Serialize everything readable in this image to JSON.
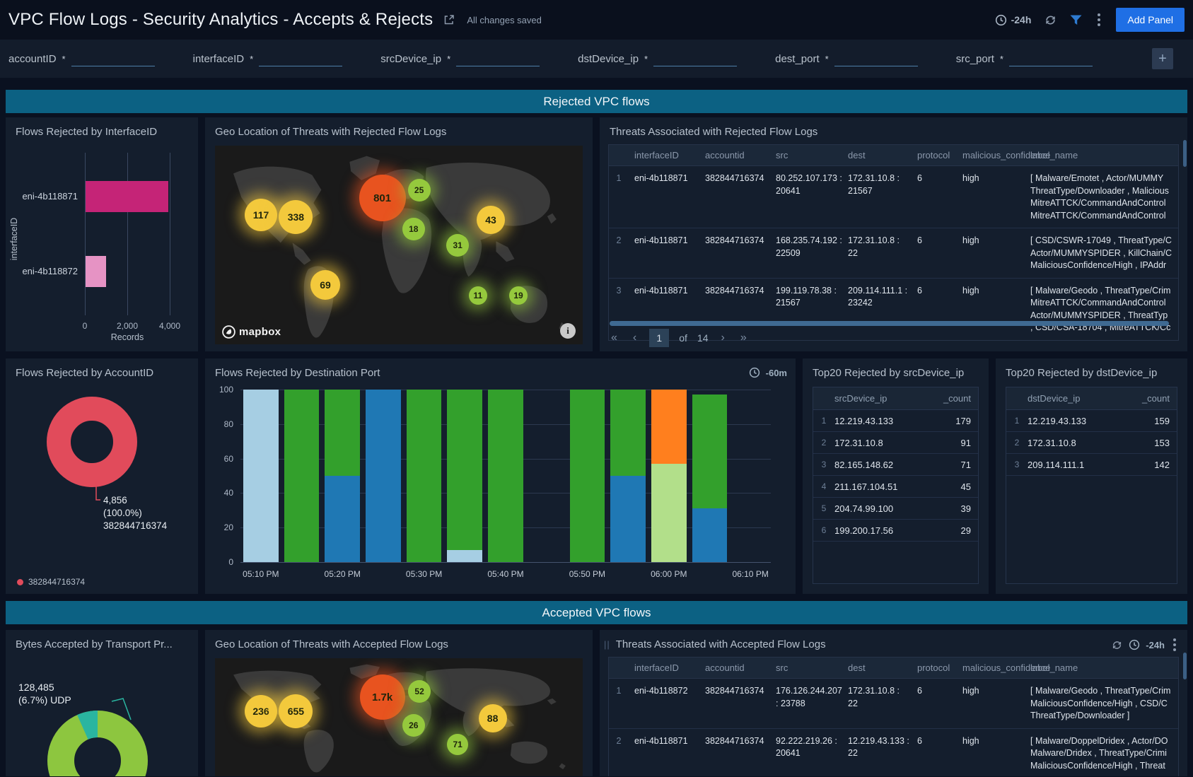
{
  "header": {
    "title": "VPC Flow Logs - Security Analytics - Accepts & Rejects",
    "saved_status": "All changes saved",
    "time_range": "-24h",
    "add_panel_label": "Add Panel"
  },
  "filters": [
    {
      "label": "accountID",
      "required": "*",
      "value": ""
    },
    {
      "label": "interfaceID",
      "required": "*",
      "value": ""
    },
    {
      "label": "srcDevice_ip",
      "required": "*",
      "value": ""
    },
    {
      "label": "dstDevice_ip",
      "required": "*",
      "value": ""
    },
    {
      "label": "dest_port",
      "required": "*",
      "value": ""
    },
    {
      "label": "src_port",
      "required": "*",
      "value": ""
    }
  ],
  "sections": {
    "rejected": "Rejected VPC flows",
    "accepted": "Accepted VPC flows"
  },
  "colors": {
    "band": "#0c6183",
    "accent_blue": "#1f6fe5",
    "bar_magenta": "#c52477",
    "bar_pink": "#e693c4",
    "donut_red": "#e14b5b",
    "donut_green": "#8dc63f",
    "donut_teal": "#2ab5a0",
    "stack_lightblue": "#a6cee3",
    "stack_green": "#33a02c",
    "stack_blue": "#1f78b4",
    "stack_lightgreen": "#b2df8a",
    "stack_orange": "#ff7f1e",
    "bubble_yellow": "#f3c93c",
    "bubble_green": "#95c93d",
    "bubble_red": "#e8531f"
  },
  "panels": {
    "interface_bar": {
      "title": "Flows Rejected by InterfaceID"
    },
    "geo_rejected": {
      "title": "Geo Location of Threats with Rejected Flow Logs",
      "attribution": "mapbox",
      "info": "i"
    },
    "threats_rejected": {
      "title": "Threats Associated with Rejected Flow Logs",
      "columns": [
        "interfaceID",
        "accountid",
        "src",
        "dest",
        "protocol",
        "malicious_confidence",
        "label_name"
      ],
      "rows": [
        {
          "num": "1",
          "interfaceID": "eni-4b118871",
          "accountid": "382844716374",
          "src": "80.252.107.173 : 20641",
          "dest": "172.31.10.8 : 21567",
          "protocol": "6",
          "malicious_confidence": "high",
          "label_lines": [
            "[ Malware/Emotet , Actor/MUMMY",
            "ThreatType/Downloader , Malicious",
            "MitreATTCK/CommandAndControl",
            "MitreATTCK/CommandAndControl"
          ]
        },
        {
          "num": "2",
          "interfaceID": "eni-4b118871",
          "accountid": "382844716374",
          "src": "168.235.74.192 : 22509",
          "dest": "172.31.10.8 : 22",
          "protocol": "6",
          "malicious_confidence": "high",
          "label_lines": [
            "[ CSD/CSWR-17049 , ThreatType/C",
            "Actor/MUMMYSPIDER , KillChain/C",
            "MaliciousConfidence/High , IPAddr"
          ]
        },
        {
          "num": "3",
          "interfaceID": "eni-4b118871",
          "accountid": "382844716374",
          "src": "199.119.78.38 : 21567",
          "dest": "209.114.111.1 : 23242",
          "protocol": "6",
          "malicious_confidence": "high",
          "label_lines": [
            "[ Malware/Geodo , ThreatType/Crim",
            "MitreATTCK/CommandAndControl",
            "Actor/MUMMYSPIDER , ThreatTyp",
            ", CSD/CSA-18704 , MitreATTCK/Cc"
          ]
        }
      ],
      "pagination": {
        "first": "«",
        "prev": "‹",
        "current": "1",
        "of_label": "of",
        "total": "14",
        "next": "›",
        "last": "»"
      }
    },
    "account_donut": {
      "title": "Flows Rejected by AccountID",
      "legend_label": "382844716374"
    },
    "dest_port_chart": {
      "title": "Flows Rejected by Destination Port",
      "time_hint": "-60m"
    },
    "top_src": {
      "title": "Top20 Rejected by srcDevice_ip",
      "columns": [
        "srcDevice_ip",
        "_count"
      ],
      "rows": [
        [
          "12.219.43.133",
          "179"
        ],
        [
          "172.31.10.8",
          "91"
        ],
        [
          "82.165.148.62",
          "71"
        ],
        [
          "211.167.104.51",
          "45"
        ],
        [
          "204.74.99.100",
          "39"
        ],
        [
          "199.200.17.56",
          "29"
        ]
      ]
    },
    "top_dst": {
      "title": "Top20 Rejected by dstDevice_ip",
      "columns": [
        "dstDevice_ip",
        "_count"
      ],
      "rows": [
        [
          "12.219.43.133",
          "159"
        ],
        [
          "172.31.10.8",
          "153"
        ],
        [
          "209.114.111.1",
          "142"
        ]
      ]
    },
    "bytes_donut": {
      "title": "Bytes Accepted by Transport Pr..."
    },
    "geo_accepted": {
      "title": "Geo Location of Threats with Accepted Flow Logs"
    },
    "threats_accepted": {
      "title": "Threats Associated with Accepted Flow Logs",
      "time_range": "-24h",
      "columns": [
        "interfaceID",
        "accountid",
        "src",
        "dest",
        "protocol",
        "malicious_confidence",
        "label_name"
      ],
      "rows": [
        {
          "num": "1",
          "interfaceID": "eni-4b118872",
          "accountid": "382844716374",
          "src": "176.126.244.207 : 23788",
          "dest": "172.31.10.8 : 22",
          "protocol": "6",
          "malicious_confidence": "high",
          "label_lines": [
            "[ Malware/Geodo , ThreatType/Crim",
            "MaliciousConfidence/High , CSD/C",
            "ThreatType/Downloader ]"
          ]
        },
        {
          "num": "2",
          "interfaceID": "eni-4b118871",
          "accountid": "382844716374",
          "src": "92.222.219.26 : 20641",
          "dest": "12.219.43.133 : 22",
          "protocol": "6",
          "malicious_confidence": "high",
          "label_lines": [
            "[ Malware/DoppelDridex , Actor/DO",
            "Malware/Dridex , ThreatType/Crimi",
            "MaliciousConfidence/High , Threat"
          ]
        }
      ]
    }
  },
  "chart_data": [
    {
      "id": "flows_rejected_by_interfaceid",
      "type": "bar",
      "orientation": "horizontal",
      "title": "Flows Rejected by InterfaceID",
      "categories": [
        "eni-4b118871",
        "eni-4b118872"
      ],
      "values": [
        3900,
        950
      ],
      "colors": [
        "#c52477",
        "#e693c4"
      ],
      "xlabel": "Records",
      "ylabel": "interfaceID",
      "xticks": [
        "0",
        "2,000",
        "4,000"
      ],
      "xlim": [
        0,
        4000
      ],
      "grid": true
    },
    {
      "id": "flows_rejected_by_accountid",
      "type": "donut",
      "title": "Flows Rejected by AccountID",
      "slices": [
        {
          "label": "382844716374",
          "value": 4856,
          "pct": "100.0%",
          "color": "#e14b5b"
        }
      ],
      "callout_lines": [
        "4,856",
        "(100.0%)",
        "382844716374"
      ],
      "legend": [
        {
          "label": "382844716374",
          "color": "#e14b5b"
        }
      ]
    },
    {
      "id": "flows_rejected_by_destination_port",
      "type": "stacked_bar",
      "title": "Flows Rejected by Destination Port",
      "time_hint": "-60m",
      "ylim": [
        0,
        100
      ],
      "yticks": [
        0,
        20,
        40,
        60,
        80,
        100
      ],
      "x_slots": [
        "05:10 PM",
        "05:15 PM",
        "05:20 PM",
        "05:25 PM",
        "05:30 PM",
        "05:35 PM",
        "05:40 PM",
        "05:45 PM",
        "05:50 PM",
        "05:55 PM",
        "06:00 PM",
        "06:05 PM",
        "06:10 PM"
      ],
      "x_tick_labels": [
        "05:10 PM",
        "05:20 PM",
        "05:30 PM",
        "05:40 PM",
        "05:50 PM",
        "06:00 PM",
        "06:10 PM"
      ],
      "bars": [
        {
          "slot": 0,
          "segments": [
            {
              "color": "#a6cee3",
              "value": 100
            }
          ]
        },
        {
          "slot": 1,
          "segments": [
            {
              "color": "#33a02c",
              "value": 100
            }
          ]
        },
        {
          "slot": 2,
          "segments": [
            {
              "color": "#1f78b4",
              "value": 50
            },
            {
              "color": "#33a02c",
              "value": 50
            }
          ]
        },
        {
          "slot": 3,
          "segments": [
            {
              "color": "#1f78b4",
              "value": 100
            }
          ]
        },
        {
          "slot": 4,
          "segments": [
            {
              "color": "#33a02c",
              "value": 100
            }
          ]
        },
        {
          "slot": 5,
          "segments": [
            {
              "color": "#a6cee3",
              "value": 7
            },
            {
              "color": "#33a02c",
              "value": 93
            }
          ]
        },
        {
          "slot": 6,
          "segments": [
            {
              "color": "#33a02c",
              "value": 100
            }
          ]
        },
        {
          "slot": 8,
          "segments": [
            {
              "color": "#33a02c",
              "value": 100
            }
          ]
        },
        {
          "slot": 9,
          "segments": [
            {
              "color": "#1f78b4",
              "value": 50
            },
            {
              "color": "#33a02c",
              "value": 50
            }
          ]
        },
        {
          "slot": 10,
          "segments": [
            {
              "color": "#b2df8a",
              "value": 57
            },
            {
              "color": "#ff7f1e",
              "value": 43
            }
          ]
        },
        {
          "slot": 11,
          "segments": [
            {
              "color": "#1f78b4",
              "value": 31
            },
            {
              "color": "#33a02c",
              "value": 66
            }
          ]
        }
      ]
    },
    {
      "id": "bytes_accepted_by_transport_protocol",
      "type": "donut",
      "title": "Bytes Accepted by Transport Pr...",
      "slices": [
        {
          "label": "UDP",
          "value": 128485,
          "pct": "6.7%",
          "color": "#2ab5a0"
        },
        {
          "label": "",
          "pct": "93.3%",
          "color": "#8dc63f"
        }
      ],
      "callout_lines": [
        "128,485",
        "(6.7%) UDP"
      ]
    },
    {
      "id": "geo_rejected",
      "type": "bubble_map",
      "title": "Geo Location of Threats with Rejected Flow Logs",
      "bubbles": [
        {
          "label": "117",
          "color": "#f3c93c",
          "x_pct": 12.5,
          "y_pct": 35,
          "size": 46
        },
        {
          "label": "338",
          "color": "#f3c93c",
          "x_pct": 22,
          "y_pct": 36,
          "size": 48
        },
        {
          "label": "801",
          "color": "#e8531f",
          "x_pct": 45.5,
          "y_pct": 26.5,
          "size": 66
        },
        {
          "label": "25",
          "color": "#95c93d",
          "x_pct": 55.5,
          "y_pct": 22.5,
          "size": 32
        },
        {
          "label": "18",
          "color": "#95c93d",
          "x_pct": 54,
          "y_pct": 42,
          "size": 32
        },
        {
          "label": "31",
          "color": "#95c93d",
          "x_pct": 66,
          "y_pct": 50,
          "size": 32
        },
        {
          "label": "43",
          "color": "#f3c93c",
          "x_pct": 75,
          "y_pct": 37.5,
          "size": 40
        },
        {
          "label": "69",
          "color": "#f3c93c",
          "x_pct": 30,
          "y_pct": 70,
          "size": 42
        },
        {
          "label": "11",
          "color": "#95c93d",
          "x_pct": 71.5,
          "y_pct": 75.5,
          "size": 26
        },
        {
          "label": "19",
          "color": "#95c93d",
          "x_pct": 82.5,
          "y_pct": 75.5,
          "size": 26
        }
      ]
    },
    {
      "id": "geo_accepted",
      "type": "bubble_map",
      "title": "Geo Location of Threats with Accepted Flow Logs",
      "bubbles": [
        {
          "label": "236",
          "color": "#f3c93c",
          "x_pct": 12.5,
          "y_pct": 45,
          "size": 46
        },
        {
          "label": "655",
          "color": "#f3c93c",
          "x_pct": 22,
          "y_pct": 45,
          "size": 48
        },
        {
          "label": "1.7k",
          "color": "#e8531f",
          "x_pct": 45.5,
          "y_pct": 33,
          "size": 64
        },
        {
          "label": "52",
          "color": "#95c93d",
          "x_pct": 55.6,
          "y_pct": 28,
          "size": 32
        },
        {
          "label": "26",
          "color": "#95c93d",
          "x_pct": 54,
          "y_pct": 57,
          "size": 32
        },
        {
          "label": "71",
          "color": "#95c93d",
          "x_pct": 66,
          "y_pct": 73,
          "size": 30
        },
        {
          "label": "88",
          "color": "#f3c93c",
          "x_pct": 75.5,
          "y_pct": 51,
          "size": 40
        }
      ]
    }
  ]
}
